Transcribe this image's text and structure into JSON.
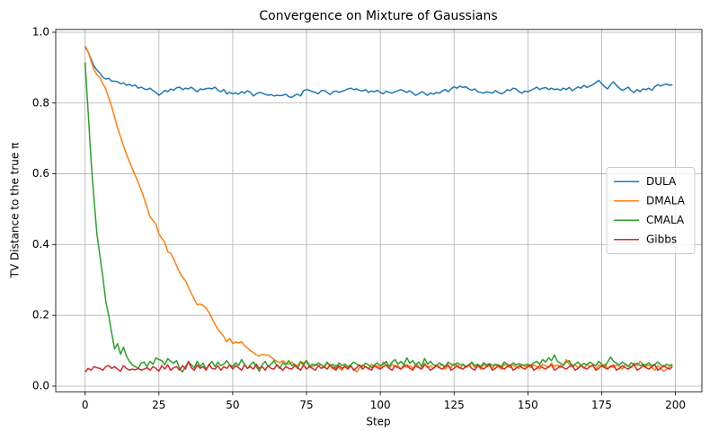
{
  "chart_data": {
    "type": "line",
    "title": "Convergence on Mixture of Gaussians",
    "xlabel": "Step",
    "ylabel": "TV Distance to the true π",
    "x": [
      0,
      1,
      2,
      3,
      4,
      5,
      6,
      7,
      8,
      9,
      10,
      11,
      12,
      13,
      14,
      15,
      16,
      17,
      18,
      19,
      20,
      21,
      22,
      23,
      24,
      25,
      26,
      27,
      28,
      29,
      30,
      31,
      32,
      33,
      34,
      35,
      36,
      37,
      38,
      39,
      40,
      41,
      42,
      43,
      44,
      45,
      46,
      47,
      48,
      49,
      50,
      51,
      52,
      53,
      54,
      55,
      56,
      57,
      58,
      59,
      60,
      61,
      62,
      63,
      64,
      65,
      66,
      67,
      68,
      69,
      70,
      71,
      72,
      73,
      74,
      75,
      76,
      77,
      78,
      79,
      80,
      81,
      82,
      83,
      84,
      85,
      86,
      87,
      88,
      89,
      90,
      91,
      92,
      93,
      94,
      95,
      96,
      97,
      98,
      99,
      100,
      101,
      102,
      103,
      104,
      105,
      106,
      107,
      108,
      109,
      110,
      111,
      112,
      113,
      114,
      115,
      116,
      117,
      118,
      119,
      120,
      121,
      122,
      123,
      124,
      125,
      126,
      127,
      128,
      129,
      130,
      131,
      132,
      133,
      134,
      135,
      136,
      137,
      138,
      139,
      140,
      141,
      142,
      143,
      144,
      145,
      146,
      147,
      148,
      149,
      150,
      151,
      152,
      153,
      154,
      155,
      156,
      157,
      158,
      159,
      160,
      161,
      162,
      163,
      164,
      165,
      166,
      167,
      168,
      169,
      170,
      171,
      172,
      173,
      174,
      175,
      176,
      177,
      178,
      179,
      180,
      181,
      182,
      183,
      184,
      185,
      186,
      187,
      188,
      189,
      190,
      191,
      192,
      193,
      194,
      195,
      196,
      197,
      198,
      199
    ],
    "series": [
      {
        "name": "DULA",
        "color": "#1f77b4",
        "values": [
          0.958,
          0.945,
          0.925,
          0.905,
          0.893,
          0.885,
          0.873,
          0.868,
          0.87,
          0.862,
          0.862,
          0.86,
          0.855,
          0.857,
          0.85,
          0.853,
          0.848,
          0.851,
          0.842,
          0.845,
          0.84,
          0.838,
          0.842,
          0.835,
          0.83,
          0.822,
          0.828,
          0.836,
          0.832,
          0.84,
          0.836,
          0.843,
          0.845,
          0.838,
          0.842,
          0.84,
          0.845,
          0.838,
          0.832,
          0.84,
          0.838,
          0.841,
          0.842,
          0.84,
          0.845,
          0.836,
          0.832,
          0.838,
          0.826,
          0.83,
          0.826,
          0.829,
          0.825,
          0.832,
          0.828,
          0.835,
          0.83,
          0.82,
          0.826,
          0.83,
          0.828,
          0.825,
          0.822,
          0.824,
          0.82,
          0.822,
          0.821,
          0.822,
          0.825,
          0.818,
          0.816,
          0.822,
          0.825,
          0.82,
          0.835,
          0.838,
          0.836,
          0.832,
          0.83,
          0.826,
          0.835,
          0.836,
          0.83,
          0.824,
          0.832,
          0.834,
          0.83,
          0.833,
          0.836,
          0.84,
          0.842,
          0.838,
          0.84,
          0.836,
          0.834,
          0.838,
          0.83,
          0.834,
          0.832,
          0.836,
          0.83,
          0.826,
          0.834,
          0.83,
          0.828,
          0.832,
          0.835,
          0.838,
          0.834,
          0.83,
          0.835,
          0.828,
          0.822,
          0.826,
          0.832,
          0.828,
          0.822,
          0.828,
          0.825,
          0.83,
          0.828,
          0.834,
          0.838,
          0.832,
          0.84,
          0.846,
          0.842,
          0.848,
          0.844,
          0.846,
          0.84,
          0.836,
          0.84,
          0.832,
          0.83,
          0.828,
          0.832,
          0.83,
          0.828,
          0.835,
          0.83,
          0.826,
          0.83,
          0.838,
          0.835,
          0.842,
          0.84,
          0.832,
          0.828,
          0.834,
          0.832,
          0.836,
          0.84,
          0.845,
          0.838,
          0.842,
          0.844,
          0.838,
          0.842,
          0.838,
          0.84,
          0.836,
          0.842,
          0.838,
          0.844,
          0.835,
          0.84,
          0.846,
          0.842,
          0.85,
          0.844,
          0.848,
          0.852,
          0.858,
          0.864,
          0.855,
          0.846,
          0.84,
          0.852,
          0.86,
          0.85,
          0.842,
          0.836,
          0.84,
          0.845,
          0.835,
          0.83,
          0.838,
          0.832,
          0.84,
          0.838,
          0.842,
          0.836,
          0.846,
          0.852,
          0.848,
          0.852,
          0.854,
          0.85,
          0.852
        ]
      },
      {
        "name": "DMALA",
        "color": "#ff7f0e",
        "values": [
          0.962,
          0.945,
          0.92,
          0.895,
          0.88,
          0.872,
          0.855,
          0.84,
          0.815,
          0.79,
          0.76,
          0.73,
          0.705,
          0.68,
          0.655,
          0.635,
          0.615,
          0.595,
          0.575,
          0.555,
          0.53,
          0.505,
          0.478,
          0.468,
          0.458,
          0.43,
          0.418,
          0.405,
          0.38,
          0.375,
          0.36,
          0.34,
          0.322,
          0.308,
          0.298,
          0.28,
          0.262,
          0.245,
          0.23,
          0.232,
          0.228,
          0.22,
          0.208,
          0.192,
          0.175,
          0.16,
          0.15,
          0.14,
          0.125,
          0.135,
          0.12,
          0.125,
          0.122,
          0.125,
          0.115,
          0.108,
          0.1,
          0.095,
          0.088,
          0.085,
          0.09,
          0.088,
          0.088,
          0.082,
          0.075,
          0.07,
          0.066,
          0.072,
          0.065,
          0.062,
          0.068,
          0.06,
          0.058,
          0.07,
          0.065,
          0.072,
          0.06,
          0.055,
          0.062,
          0.058,
          0.06,
          0.052,
          0.065,
          0.058,
          0.048,
          0.06,
          0.052,
          0.045,
          0.058,
          0.05,
          0.055,
          0.048,
          0.04,
          0.052,
          0.06,
          0.055,
          0.048,
          0.062,
          0.055,
          0.058,
          0.052,
          0.068,
          0.06,
          0.05,
          0.062,
          0.055,
          0.058,
          0.048,
          0.06,
          0.052,
          0.058,
          0.05,
          0.062,
          0.055,
          0.048,
          0.065,
          0.052,
          0.058,
          0.05,
          0.06,
          0.055,
          0.062,
          0.048,
          0.058,
          0.052,
          0.065,
          0.055,
          0.05,
          0.06,
          0.052,
          0.058,
          0.065,
          0.052,
          0.06,
          0.048,
          0.062,
          0.055,
          0.058,
          0.05,
          0.06,
          0.055,
          0.048,
          0.062,
          0.058,
          0.052,
          0.06,
          0.055,
          0.05,
          0.062,
          0.055,
          0.058,
          0.052,
          0.06,
          0.055,
          0.048,
          0.062,
          0.058,
          0.052,
          0.065,
          0.055,
          0.06,
          0.052,
          0.058,
          0.075,
          0.062,
          0.055,
          0.06,
          0.052,
          0.058,
          0.05,
          0.062,
          0.055,
          0.058,
          0.048,
          0.06,
          0.055,
          0.062,
          0.05,
          0.058,
          0.052,
          0.06,
          0.055,
          0.048,
          0.062,
          0.058,
          0.052,
          0.065,
          0.058,
          0.07,
          0.062,
          0.055,
          0.06,
          0.052,
          0.045,
          0.058,
          0.05,
          0.042,
          0.048,
          0.055,
          0.06
        ]
      },
      {
        "name": "CMALA",
        "color": "#2ca02c",
        "values": [
          0.915,
          0.78,
          0.64,
          0.53,
          0.43,
          0.37,
          0.31,
          0.24,
          0.2,
          0.15,
          0.105,
          0.12,
          0.09,
          0.11,
          0.085,
          0.07,
          0.06,
          0.055,
          0.05,
          0.065,
          0.068,
          0.055,
          0.07,
          0.062,
          0.08,
          0.075,
          0.072,
          0.06,
          0.078,
          0.07,
          0.065,
          0.072,
          0.05,
          0.04,
          0.055,
          0.068,
          0.06,
          0.052,
          0.07,
          0.055,
          0.065,
          0.048,
          0.06,
          0.07,
          0.055,
          0.068,
          0.058,
          0.062,
          0.072,
          0.06,
          0.055,
          0.066,
          0.058,
          0.075,
          0.062,
          0.05,
          0.06,
          0.068,
          0.055,
          0.042,
          0.06,
          0.07,
          0.055,
          0.062,
          0.072,
          0.058,
          0.05,
          0.066,
          0.06,
          0.072,
          0.058,
          0.062,
          0.05,
          0.068,
          0.06,
          0.072,
          0.055,
          0.062,
          0.058,
          0.066,
          0.06,
          0.055,
          0.068,
          0.058,
          0.062,
          0.05,
          0.066,
          0.058,
          0.062,
          0.055,
          0.06,
          0.068,
          0.062,
          0.058,
          0.055,
          0.065,
          0.06,
          0.052,
          0.06,
          0.066,
          0.058,
          0.062,
          0.07,
          0.055,
          0.068,
          0.075,
          0.062,
          0.07,
          0.06,
          0.08,
          0.065,
          0.072,
          0.06,
          0.068,
          0.055,
          0.078,
          0.062,
          0.07,
          0.06,
          0.058,
          0.066,
          0.06,
          0.055,
          0.068,
          0.062,
          0.058,
          0.066,
          0.06,
          0.062,
          0.055,
          0.06,
          0.068,
          0.058,
          0.062,
          0.055,
          0.066,
          0.06,
          0.064,
          0.058,
          0.062,
          0.06,
          0.055,
          0.068,
          0.062,
          0.058,
          0.066,
          0.06,
          0.064,
          0.058,
          0.06,
          0.062,
          0.058,
          0.066,
          0.07,
          0.062,
          0.075,
          0.068,
          0.08,
          0.072,
          0.088,
          0.07,
          0.065,
          0.06,
          0.068,
          0.072,
          0.055,
          0.062,
          0.068,
          0.058,
          0.064,
          0.06,
          0.068,
          0.062,
          0.058,
          0.07,
          0.062,
          0.055,
          0.068,
          0.082,
          0.07,
          0.065,
          0.06,
          0.068,
          0.062,
          0.055,
          0.066,
          0.06,
          0.065,
          0.058,
          0.062,
          0.06,
          0.066,
          0.058,
          0.062,
          0.068,
          0.06,
          0.055,
          0.062,
          0.058,
          0.062
        ]
      },
      {
        "name": "Gibbs",
        "color": "#d62728",
        "values": [
          0.04,
          0.05,
          0.045,
          0.055,
          0.052,
          0.05,
          0.045,
          0.055,
          0.058,
          0.05,
          0.055,
          0.048,
          0.042,
          0.058,
          0.05,
          0.045,
          0.048,
          0.046,
          0.05,
          0.045,
          0.048,
          0.052,
          0.045,
          0.055,
          0.05,
          0.042,
          0.058,
          0.048,
          0.06,
          0.045,
          0.052,
          0.055,
          0.045,
          0.058,
          0.048,
          0.07,
          0.052,
          0.045,
          0.06,
          0.05,
          0.055,
          0.045,
          0.062,
          0.05,
          0.048,
          0.058,
          0.045,
          0.055,
          0.05,
          0.06,
          0.048,
          0.058,
          0.052,
          0.045,
          0.06,
          0.05,
          0.055,
          0.048,
          0.062,
          0.05,
          0.055,
          0.045,
          0.058,
          0.05,
          0.048,
          0.06,
          0.052,
          0.045,
          0.055,
          0.05,
          0.048,
          0.058,
          0.052,
          0.045,
          0.06,
          0.048,
          0.055,
          0.05,
          0.045,
          0.058,
          0.05,
          0.055,
          0.048,
          0.06,
          0.052,
          0.045,
          0.058,
          0.05,
          0.055,
          0.048,
          0.058,
          0.045,
          0.052,
          0.06,
          0.048,
          0.055,
          0.05,
          0.045,
          0.058,
          0.052,
          0.048,
          0.055,
          0.06,
          0.05,
          0.045,
          0.058,
          0.052,
          0.048,
          0.055,
          0.06,
          0.05,
          0.045,
          0.058,
          0.052,
          0.048,
          0.06,
          0.055,
          0.045,
          0.05,
          0.058,
          0.052,
          0.048,
          0.055,
          0.06,
          0.045,
          0.05,
          0.058,
          0.052,
          0.048,
          0.055,
          0.06,
          0.05,
          0.045,
          0.058,
          0.052,
          0.048,
          0.055,
          0.06,
          0.045,
          0.05,
          0.058,
          0.052,
          0.048,
          0.055,
          0.06,
          0.045,
          0.05,
          0.058,
          0.052,
          0.048,
          0.055,
          0.06,
          0.045,
          0.05,
          0.058,
          0.052,
          0.048,
          0.055,
          0.06,
          0.045,
          0.05,
          0.058,
          0.052,
          0.048,
          0.055,
          0.06,
          0.045,
          0.05,
          0.058,
          0.052,
          0.048,
          0.055,
          0.06,
          0.045,
          0.05,
          0.058,
          0.052,
          0.048,
          0.055,
          0.06,
          0.045,
          0.05,
          0.058,
          0.052,
          0.048,
          0.055,
          0.06,
          0.045,
          0.05,
          0.058,
          0.052,
          0.048,
          0.055,
          0.06,
          0.045,
          0.05,
          0.058,
          0.052,
          0.048,
          0.055
        ]
      }
    ],
    "xlim": [
      -9.95,
      208.95
    ],
    "xticks": [
      0,
      25,
      50,
      75,
      100,
      125,
      150,
      175,
      200
    ],
    "ylim": [
      -0.016,
      1.008
    ],
    "yticks": [
      {
        "value": 0,
        "label": "0.0"
      },
      0.2,
      0.4,
      0.6,
      0.8,
      {
        "value": 1,
        "label": "1.0"
      }
    ],
    "grid": true,
    "legend": "center right"
  }
}
